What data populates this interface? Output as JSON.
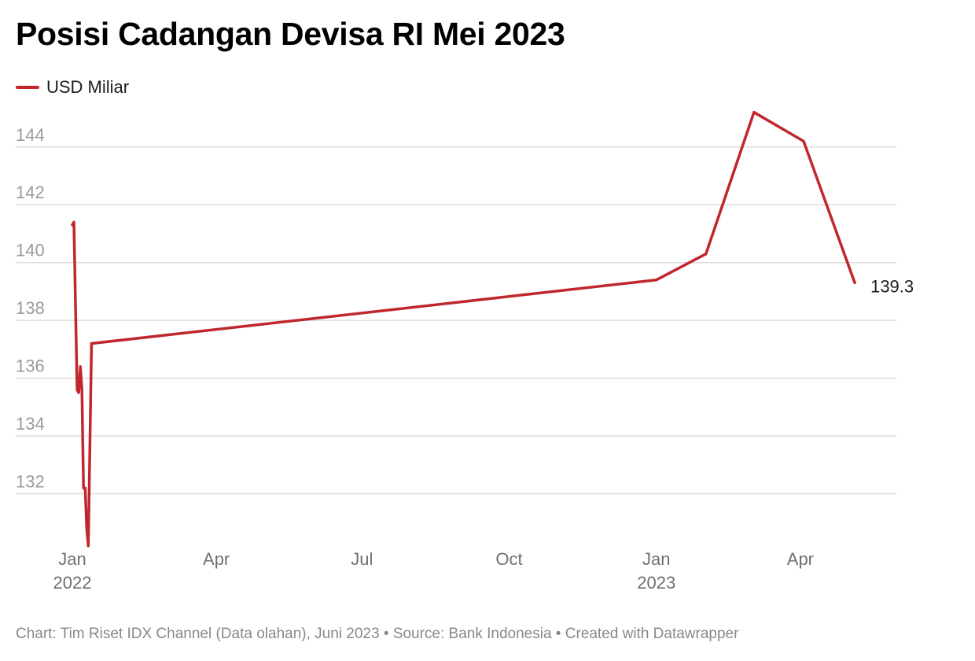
{
  "title": "Posisi Cadangan Devisa RI Mei 2023",
  "footer": "Chart: Tim Riset IDX Channel (Data olahan), Juni 2023 • Source: Bank Indonesia • Created with Datawrapper",
  "colors": {
    "series": "#c0272d",
    "grid": "#dddddd",
    "tick": "#9a9a9a"
  },
  "chart_data": {
    "type": "line",
    "title": "Posisi Cadangan Devisa RI Mei 2023",
    "xlabel": "",
    "ylabel": "",
    "legend_position": "top-left",
    "grid": true,
    "ylim": [
      130.3,
      145.6
    ],
    "xlim": [
      "2022-01-01",
      "2023-05-31"
    ],
    "y_ticks": [
      132,
      134,
      136,
      138,
      140,
      142,
      144
    ],
    "x_ticks": [
      {
        "date": "2022-01-01",
        "label": "Jan",
        "sublabel": "2022"
      },
      {
        "date": "2022-04-01",
        "label": "Apr",
        "sublabel": ""
      },
      {
        "date": "2022-07-01",
        "label": "Jul",
        "sublabel": ""
      },
      {
        "date": "2022-10-01",
        "label": "Oct",
        "sublabel": ""
      },
      {
        "date": "2023-01-01",
        "label": "Jan",
        "sublabel": "2023"
      },
      {
        "date": "2023-04-01",
        "label": "Apr",
        "sublabel": ""
      }
    ],
    "series": [
      {
        "name": "USD Miliar",
        "end_label": "139.3",
        "points": [
          {
            "x": "2022-01-01",
            "y": 141.3
          },
          {
            "x": "2022-01-02",
            "y": 141.4
          },
          {
            "x": "2022-01-04",
            "y": 135.6
          },
          {
            "x": "2022-01-05",
            "y": 135.5
          },
          {
            "x": "2022-01-06",
            "y": 136.4
          },
          {
            "x": "2022-01-07",
            "y": 135.6
          },
          {
            "x": "2022-01-08",
            "y": 132.2
          },
          {
            "x": "2022-01-09",
            "y": 132.2
          },
          {
            "x": "2022-01-10",
            "y": 130.8
          },
          {
            "x": "2022-01-11",
            "y": 130.2
          },
          {
            "x": "2022-01-13",
            "y": 137.2
          },
          {
            "x": "2023-01-01",
            "y": 139.4
          },
          {
            "x": "2023-02-01",
            "y": 140.3
          },
          {
            "x": "2023-03-03",
            "y": 145.2
          },
          {
            "x": "2023-04-03",
            "y": 144.2
          },
          {
            "x": "2023-05-05",
            "y": 139.3
          }
        ]
      }
    ]
  }
}
